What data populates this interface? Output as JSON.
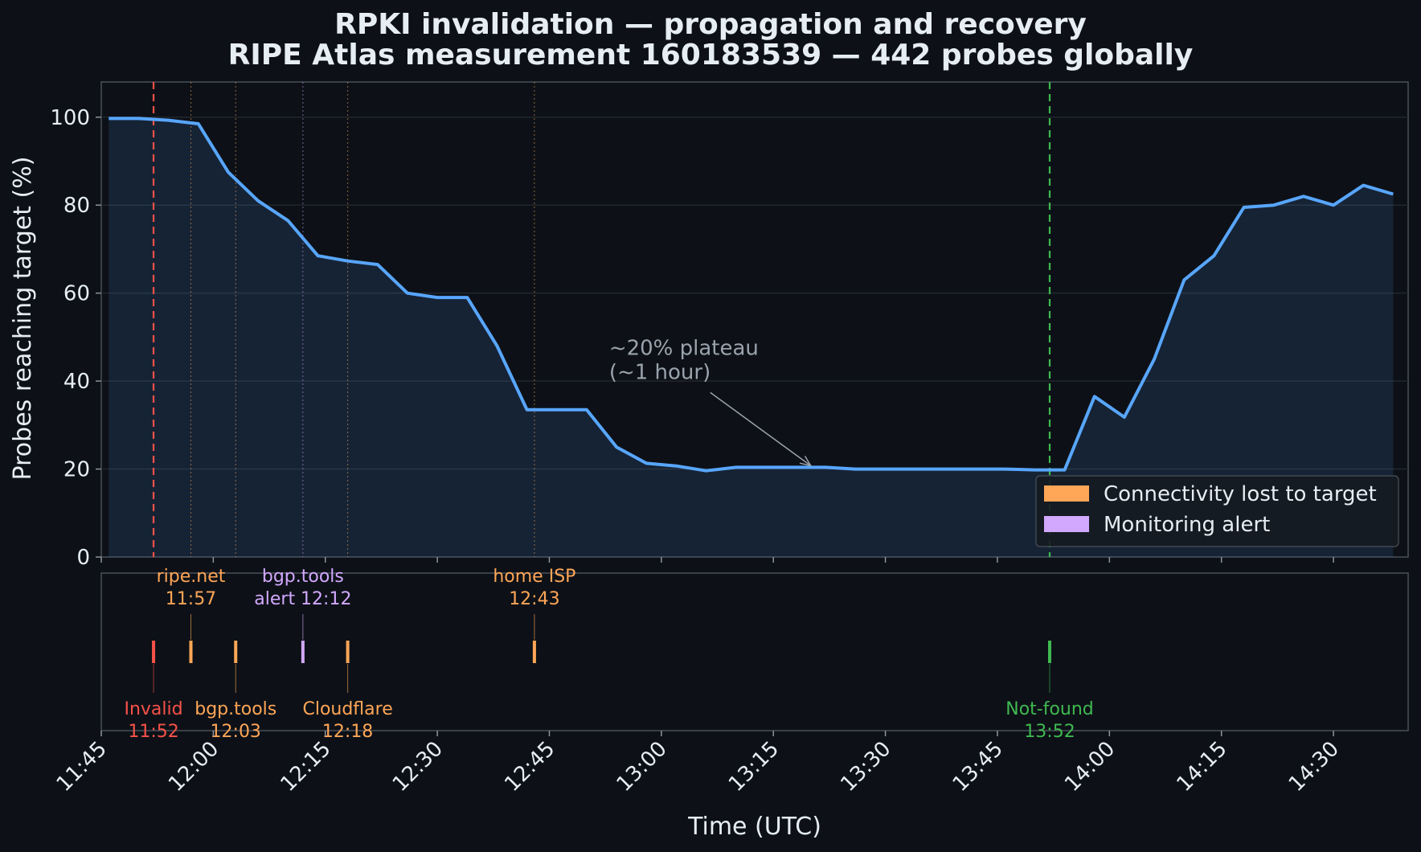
{
  "chart_data": {
    "type": "line",
    "title_line1": "RPKI invalidation — propagation and recovery",
    "title_line2": "RIPE Atlas measurement 160183539 — 442 probes globally",
    "xlabel": "Time (UTC)",
    "ylabel": "Probes reaching target (%)",
    "ylim": [
      0,
      108
    ],
    "yticks": [
      "0",
      "20",
      "40",
      "60",
      "80",
      "100"
    ],
    "xticks": [
      "11:45",
      "12:00",
      "12:15",
      "12:30",
      "12:45",
      "13:00",
      "13:15",
      "13:30",
      "13:45",
      "14:00",
      "14:15",
      "14:30"
    ],
    "x_range": [
      "11:45",
      "14:40"
    ],
    "grid": "horizontal",
    "series": [
      {
        "color": "#58a6ff",
        "points": [
          [
            "11:46",
            99.7
          ],
          [
            "11:50",
            99.7
          ],
          [
            "11:54",
            99.3
          ],
          [
            "11:58",
            98.5
          ],
          [
            "12:02",
            87.5
          ],
          [
            "12:06",
            81.0
          ],
          [
            "12:10",
            76.5
          ],
          [
            "12:14",
            68.5
          ],
          [
            "12:18",
            67.3
          ],
          [
            "12:22",
            66.5
          ],
          [
            "12:26",
            60.0
          ],
          [
            "12:30",
            59.0
          ],
          [
            "12:34",
            59.0
          ],
          [
            "12:38",
            48.0
          ],
          [
            "12:42",
            33.5
          ],
          [
            "12:46",
            33.5
          ],
          [
            "12:50",
            33.5
          ],
          [
            "12:54",
            25.0
          ],
          [
            "12:58",
            21.3
          ],
          [
            "13:02",
            20.7
          ],
          [
            "13:06",
            19.6
          ],
          [
            "13:10",
            20.4
          ],
          [
            "13:14",
            20.4
          ],
          [
            "13:18",
            20.4
          ],
          [
            "13:22",
            20.4
          ],
          [
            "13:26",
            20.0
          ],
          [
            "13:30",
            20.0
          ],
          [
            "13:34",
            20.0
          ],
          [
            "13:38",
            20.0
          ],
          [
            "13:42",
            20.0
          ],
          [
            "13:46",
            20.0
          ],
          [
            "13:50",
            19.8
          ],
          [
            "13:54",
            19.8
          ],
          [
            "13:58",
            36.5
          ],
          [
            "14:02",
            31.8
          ],
          [
            "14:06",
            45.0
          ],
          [
            "14:10",
            63.0
          ],
          [
            "14:14",
            68.5
          ],
          [
            "14:18",
            79.5
          ],
          [
            "14:22",
            80.0
          ],
          [
            "14:26",
            82.0
          ],
          [
            "14:30",
            80.0
          ],
          [
            "14:34",
            84.5
          ],
          [
            "14:38",
            82.5
          ]
        ]
      }
    ],
    "markers": [
      {
        "time": "11:52",
        "color": "#f85149",
        "style": "dashed"
      },
      {
        "time": "13:52",
        "color": "#3fb950",
        "style": "dashed"
      }
    ],
    "annotation": {
      "line1": "~20% plateau",
      "line2": "(~1 hour)",
      "text_at": [
        "12:53",
        40.5
      ],
      "arrow_to": [
        "13:20",
        20.4
      ]
    },
    "legend": {
      "placement": "bottom-right",
      "items": [
        {
          "label": "Connectivity lost to target",
          "color": "#ffa657"
        },
        {
          "label": "Monitoring alert",
          "color": "#d2a8ff"
        }
      ]
    },
    "events": [
      {
        "time": "11:52",
        "line1": "Invalid",
        "line2": "11:52",
        "color": "#f85149",
        "position": "below"
      },
      {
        "time": "11:57",
        "line1": "ripe.net",
        "line2": "11:57",
        "color": "#ffa657",
        "position": "above"
      },
      {
        "time": "12:03",
        "line1": "bgp.tools",
        "line2": "12:03",
        "color": "#ffa657",
        "position": "below"
      },
      {
        "time": "12:12",
        "line1": "bgp.tools",
        "line2": "alert 12:12",
        "color": "#d2a8ff",
        "position": "above"
      },
      {
        "time": "12:18",
        "line1": "Cloudflare",
        "line2": "12:18",
        "color": "#ffa657",
        "position": "below"
      },
      {
        "time": "12:43",
        "line1": "home ISP",
        "line2": "12:43",
        "color": "#ffa657",
        "position": "above"
      },
      {
        "time": "13:52",
        "line1": "Not-found",
        "line2": "13:52",
        "color": "#3fb950",
        "position": "below"
      }
    ]
  }
}
